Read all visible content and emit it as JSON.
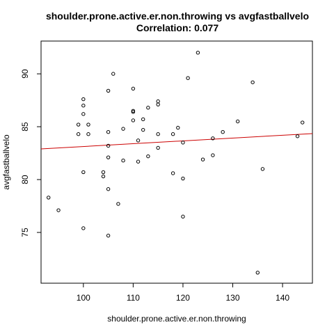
{
  "chart_data": {
    "type": "scatter",
    "title": "shoulder.prone.active.er.non.throwing vs avgfastballvelo",
    "subtitle": "Correlation: 0.077",
    "xlabel": "shoulder.prone.active.er.non.throwing",
    "ylabel": "avgfastballvelo",
    "xlim": [
      91.5,
      146
    ],
    "ylim": [
      70.2,
      93.1
    ],
    "x_ticks": [
      100,
      110,
      120,
      130,
      140
    ],
    "y_ticks": [
      75,
      80,
      85,
      90
    ],
    "grid": false,
    "legend": "none",
    "colors": {
      "points": "#000000",
      "fit_line": "#cc0000",
      "frame": "#000000"
    },
    "fit_line": {
      "x": [
        91.5,
        146
      ],
      "y": [
        82.9,
        84.35
      ]
    },
    "points": [
      {
        "x": 93,
        "y": 78.3
      },
      {
        "x": 95,
        "y": 77.1
      },
      {
        "x": 99,
        "y": 85.2
      },
      {
        "x": 99,
        "y": 84.3
      },
      {
        "x": 100,
        "y": 87.6
      },
      {
        "x": 100,
        "y": 87.0
      },
      {
        "x": 100,
        "y": 86.2
      },
      {
        "x": 100,
        "y": 80.7
      },
      {
        "x": 100,
        "y": 75.4
      },
      {
        "x": 101,
        "y": 85.2
      },
      {
        "x": 101,
        "y": 84.3
      },
      {
        "x": 104,
        "y": 80.7
      },
      {
        "x": 104,
        "y": 80.3
      },
      {
        "x": 105,
        "y": 88.4
      },
      {
        "x": 105,
        "y": 84.5
      },
      {
        "x": 105,
        "y": 83.2
      },
      {
        "x": 105,
        "y": 82.1
      },
      {
        "x": 105,
        "y": 79.1
      },
      {
        "x": 105,
        "y": 74.7
      },
      {
        "x": 106,
        "y": 90.0
      },
      {
        "x": 107,
        "y": 77.7
      },
      {
        "x": 108,
        "y": 84.8
      },
      {
        "x": 108,
        "y": 81.8
      },
      {
        "x": 110,
        "y": 88.6
      },
      {
        "x": 110,
        "y": 86.4
      },
      {
        "x": 110,
        "y": 86.5
      },
      {
        "x": 110,
        "y": 85.6
      },
      {
        "x": 111,
        "y": 83.7
      },
      {
        "x": 111,
        "y": 81.7
      },
      {
        "x": 112,
        "y": 85.7
      },
      {
        "x": 112,
        "y": 84.7
      },
      {
        "x": 113,
        "y": 86.8
      },
      {
        "x": 113,
        "y": 82.2
      },
      {
        "x": 115,
        "y": 87.4
      },
      {
        "x": 115,
        "y": 87.1
      },
      {
        "x": 115,
        "y": 84.3
      },
      {
        "x": 115,
        "y": 83.0
      },
      {
        "x": 118,
        "y": 84.3
      },
      {
        "x": 118,
        "y": 80.6
      },
      {
        "x": 119,
        "y": 84.9
      },
      {
        "x": 120,
        "y": 83.5
      },
      {
        "x": 120,
        "y": 80.1
      },
      {
        "x": 120,
        "y": 76.5
      },
      {
        "x": 121,
        "y": 89.6
      },
      {
        "x": 123,
        "y": 92.0
      },
      {
        "x": 124,
        "y": 81.9
      },
      {
        "x": 126,
        "y": 83.9
      },
      {
        "x": 126,
        "y": 82.3
      },
      {
        "x": 128,
        "y": 84.5
      },
      {
        "x": 131,
        "y": 85.5
      },
      {
        "x": 134,
        "y": 89.2
      },
      {
        "x": 135,
        "y": 71.2
      },
      {
        "x": 136,
        "y": 81.0
      },
      {
        "x": 143,
        "y": 84.1
      },
      {
        "x": 144,
        "y": 85.4
      }
    ]
  }
}
